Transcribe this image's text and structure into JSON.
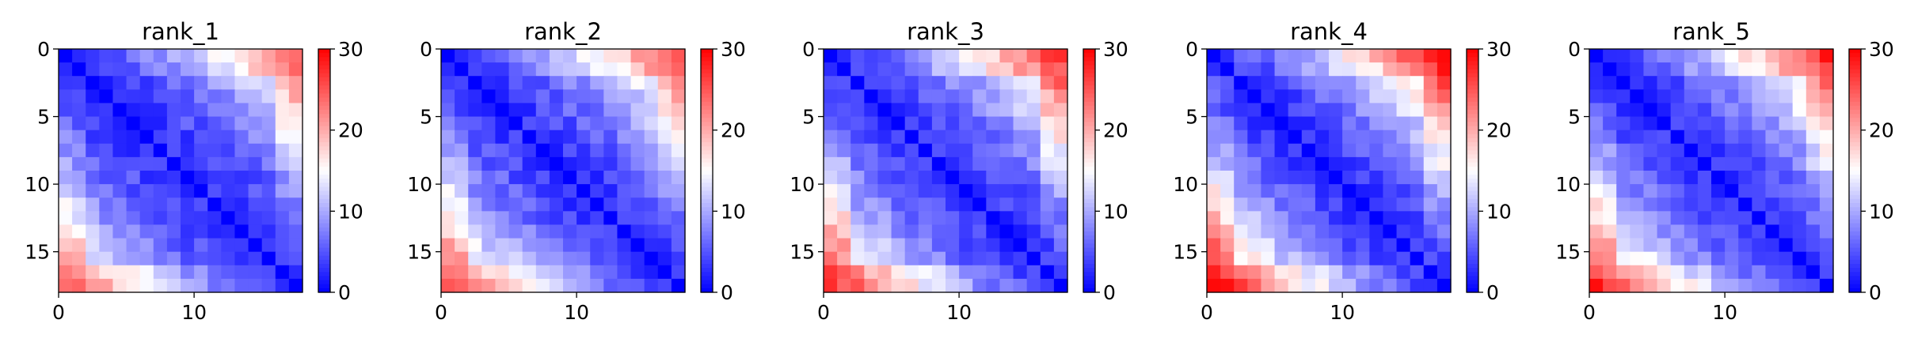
{
  "chart_data": [
    {
      "type": "heatmap",
      "title": "rank_1",
      "size": 18,
      "zlim": [
        0,
        30
      ],
      "colormap": "bwr",
      "xticks": [
        0,
        10
      ],
      "yticks": [
        0,
        5,
        10,
        15
      ],
      "colorbar_ticks": [
        0,
        10,
        20,
        30
      ],
      "far_corner_value": 19,
      "edge_boost": 5,
      "noise_seed": 11
    },
    {
      "type": "heatmap",
      "title": "rank_2",
      "size": 18,
      "zlim": [
        0,
        30
      ],
      "colormap": "bwr",
      "xticks": [
        0,
        10
      ],
      "yticks": [
        0,
        5,
        10,
        15
      ],
      "colorbar_ticks": [
        0,
        10,
        20,
        30
      ],
      "far_corner_value": 21,
      "edge_boost": 5,
      "noise_seed": 23
    },
    {
      "type": "heatmap",
      "title": "rank_3",
      "size": 18,
      "zlim": [
        0,
        30
      ],
      "colormap": "bwr",
      "xticks": [
        0,
        10
      ],
      "yticks": [
        0,
        5,
        10,
        15
      ],
      "colorbar_ticks": [
        0,
        10,
        20,
        30
      ],
      "far_corner_value": 22,
      "edge_boost": 6,
      "noise_seed": 37
    },
    {
      "type": "heatmap",
      "title": "rank_4",
      "size": 18,
      "zlim": [
        0,
        30
      ],
      "colormap": "bwr",
      "xticks": [
        0,
        10
      ],
      "yticks": [
        0,
        5,
        10,
        15
      ],
      "colorbar_ticks": [
        0,
        10,
        20,
        30
      ],
      "far_corner_value": 24,
      "edge_boost": 6,
      "noise_seed": 41
    },
    {
      "type": "heatmap",
      "title": "rank_5",
      "size": 18,
      "zlim": [
        0,
        30
      ],
      "colormap": "bwr",
      "xticks": [
        0,
        10
      ],
      "yticks": [
        0,
        5,
        10,
        15
      ],
      "colorbar_ticks": [
        0,
        10,
        20,
        30
      ],
      "far_corner_value": 23,
      "edge_boost": 5,
      "noise_seed": 53
    }
  ]
}
